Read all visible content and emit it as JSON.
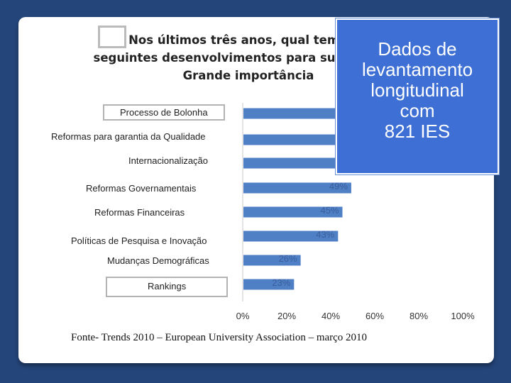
{
  "question": {
    "line1": "Nos últimos três anos, qual tem sido a ir",
    "line2": "seguintes desenvolvimentos para sua estratég",
    "line3": "Grande importância"
  },
  "callout": {
    "line1": "Dados de",
    "line2": "levantamento",
    "line3": "longitudinal",
    "line4": "com",
    "line5": "821 IES"
  },
  "footer": "Fonte- Trends 2010 – European University Association – março 2010",
  "colors": {
    "bar": "#4f7fc4",
    "label": "#3a5e9c",
    "callout": "#3d6fd4",
    "background": "#24457a"
  },
  "chart_data": {
    "type": "bar",
    "orientation": "horizontal",
    "categories": [
      "Processo de Bolonha",
      "Reformas para garantia da Qualidade",
      "Internacionalização",
      "Reformas Governamentais",
      "Reformas Financeiras",
      "Políticas  de Pesquisa e Inovação",
      "Mudanças Demográficas",
      "Rankings"
    ],
    "values": [
      null,
      null,
      null,
      49,
      45,
      43,
      26,
      23
    ],
    "value_labels": [
      "",
      "",
      "",
      "49%",
      "45%",
      "43%",
      "26%",
      "23%"
    ],
    "xlim": [
      0,
      100
    ],
    "xticks": [
      "0%",
      "20%",
      "40%",
      "60%",
      "80%",
      "100%"
    ],
    "boxed_categories": [
      "Processo de Bolonha",
      "Rankings"
    ]
  }
}
